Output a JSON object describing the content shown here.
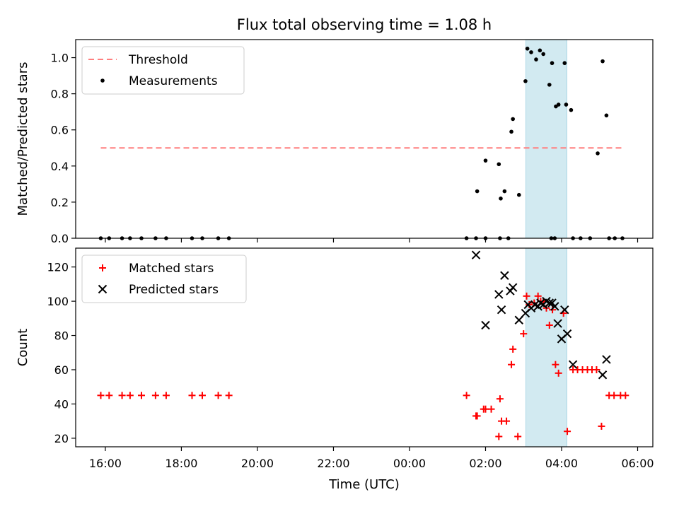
{
  "figure": {
    "title": "Flux total observing time = 1.08 h",
    "xlabel": "Time (UTC)"
  },
  "colors": {
    "threshold": "#ff7f7f",
    "measurements": "#000000",
    "matched": "#ff0000",
    "predicted": "#000000",
    "highlight": "#add8e6"
  },
  "chart_data": [
    {
      "type": "scatter",
      "ylabel": "Matched/Predicted stars",
      "x_unit": "hours since 00:00 UTC of first day",
      "xlim": [
        15.22,
        30.4
      ],
      "ylim": [
        0,
        1.1
      ],
      "yticks": [
        "0.0",
        "0.2",
        "0.4",
        "0.6",
        "0.8",
        "1.0"
      ],
      "grid": false,
      "legend": {
        "position": "upper-left",
        "entries": [
          {
            "label": "Threshold",
            "marker": "dashed-line",
            "series": "threshold"
          },
          {
            "label": "Measurements",
            "marker": "dot",
            "series": "measurements"
          }
        ]
      },
      "highlight_span": [
        27.06,
        28.14
      ],
      "series": [
        {
          "name": "Threshold",
          "kind": "dashed-line",
          "x": [
            15.88,
            29.63
          ],
          "y": [
            0.5,
            0.5
          ]
        },
        {
          "name": "Measurements",
          "kind": "dot",
          "x": [
            15.88,
            16.1,
            16.44,
            16.65,
            16.95,
            17.32,
            17.6,
            18.28,
            18.55,
            18.97,
            19.25,
            25.5,
            25.75,
            26.0,
            26.38,
            25.78,
            26.0,
            26.35,
            26.4,
            26.5,
            26.68,
            26.72,
            26.88,
            27.05,
            27.1,
            27.2,
            27.33,
            27.43,
            27.52,
            27.68,
            27.75,
            27.85,
            27.92,
            28.08,
            28.12,
            28.25,
            28.95,
            29.08,
            29.18,
            26.6,
            27.73,
            27.82,
            28.3,
            28.5,
            28.75,
            29.25,
            29.4,
            29.6
          ],
          "y": [
            0,
            0,
            0,
            0,
            0,
            0,
            0,
            0,
            0,
            0,
            0,
            0,
            0,
            0,
            0,
            0.26,
            0.43,
            0.41,
            0.22,
            0.26,
            0.59,
            0.66,
            0.24,
            0.87,
            1.05,
            1.03,
            0.99,
            1.04,
            1.02,
            0.85,
            0.97,
            0.73,
            0.74,
            0.97,
            0.74,
            0.71,
            0.47,
            0.98,
            0.68,
            0,
            0,
            0,
            0,
            0,
            0,
            0,
            0,
            0
          ]
        }
      ]
    },
    {
      "type": "scatter",
      "ylabel": "Count",
      "xlim": [
        15.22,
        30.4
      ],
      "ylim": [
        15,
        131
      ],
      "yticks": [
        "20",
        "40",
        "60",
        "80",
        "100",
        "120"
      ],
      "xticks": [
        "16:00",
        "18:00",
        "20:00",
        "22:00",
        "00:00",
        "02:00",
        "04:00",
        "06:00"
      ],
      "grid": false,
      "legend": {
        "position": "upper-left",
        "entries": [
          {
            "label": "Matched stars",
            "marker": "plus",
            "series": "matched"
          },
          {
            "label": "Predicted stars",
            "marker": "x",
            "series": "predicted"
          }
        ]
      },
      "highlight_span": [
        27.06,
        28.14
      ],
      "series": [
        {
          "name": "Matched stars",
          "kind": "plus",
          "x": [
            15.88,
            16.1,
            16.44,
            16.65,
            16.95,
            17.32,
            17.6,
            18.28,
            18.55,
            18.97,
            19.25,
            25.5,
            25.75,
            26.0,
            26.38,
            25.78,
            25.95,
            26.15,
            26.35,
            26.42,
            26.55,
            26.68,
            26.72,
            26.85,
            27.0,
            27.08,
            27.15,
            27.28,
            27.38,
            27.45,
            27.52,
            27.6,
            27.68,
            27.76,
            27.84,
            27.92,
            28.05,
            28.15,
            28.3,
            28.42,
            28.55,
            28.68,
            28.8,
            28.92,
            29.05,
            29.25,
            29.38,
            29.55,
            29.68
          ],
          "y": [
            45,
            45,
            45,
            45,
            45,
            45,
            45,
            45,
            45,
            45,
            45,
            45,
            33,
            37,
            43,
            33,
            37,
            37,
            21,
            30,
            30,
            63,
            72,
            21,
            81,
            103,
            98,
            99,
            103,
            100,
            100,
            96,
            86,
            95,
            63,
            58,
            93,
            24,
            60,
            60,
            60,
            60,
            60,
            60,
            27,
            45,
            45,
            45,
            45
          ]
        },
        {
          "name": "Predicted stars",
          "kind": "x",
          "x": [
            25.75,
            26.0,
            26.35,
            26.42,
            26.5,
            26.65,
            26.72,
            26.88,
            27.05,
            27.12,
            27.2,
            27.3,
            27.38,
            27.45,
            27.52,
            27.6,
            27.68,
            27.75,
            27.82,
            27.9,
            28.0,
            28.08,
            28.15,
            28.3,
            29.08,
            29.18
          ],
          "y": [
            127,
            86,
            104,
            95,
            115,
            106,
            108,
            89,
            93,
            98,
            96,
            98,
            97,
            99,
            98,
            100,
            99,
            99,
            97,
            87,
            78,
            95,
            81,
            63,
            57,
            66
          ]
        }
      ]
    }
  ]
}
